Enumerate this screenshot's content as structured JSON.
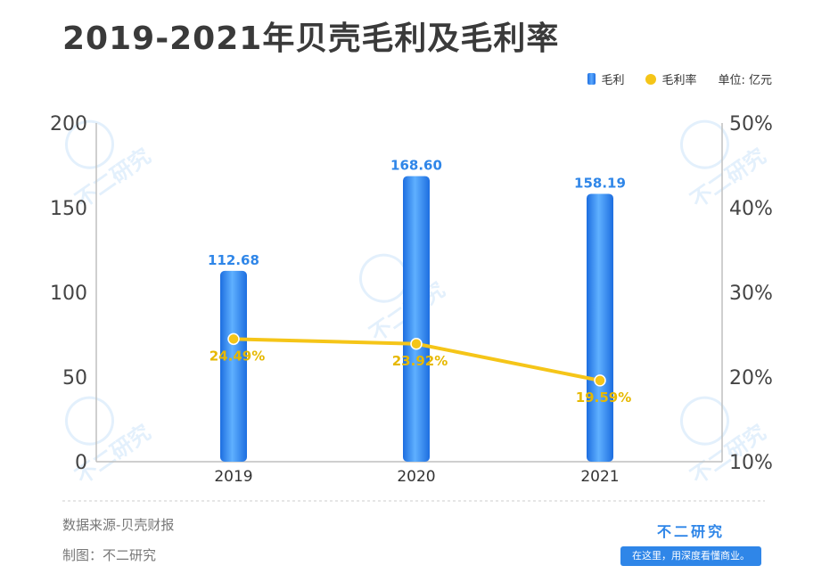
{
  "title": "2019-2021年贝壳毛利及毛利率",
  "legend": {
    "bar_label": "毛利",
    "line_label": "毛利率",
    "unit": "单位: 亿元"
  },
  "footer": {
    "source": "数据来源-贝壳财报",
    "credit": "制图：不二研究"
  },
  "brand": {
    "name": "不二研究",
    "tagline": "在这里，用深度看懂商业。"
  },
  "watermark": "不二研究",
  "colors": {
    "bar": "#2f86e8",
    "line": "#f5c518",
    "bar_label": "#2f86e8",
    "line_label": "#e6b800"
  },
  "chart_data": {
    "type": "bar",
    "categories": [
      "2019",
      "2020",
      "2021"
    ],
    "series": [
      {
        "name": "毛利",
        "type": "bar",
        "axis": "left",
        "values": [
          112.68,
          168.6,
          158.19
        ],
        "labels": [
          "112.68",
          "168.60",
          "158.19"
        ]
      },
      {
        "name": "毛利率",
        "type": "line",
        "axis": "right",
        "values": [
          24.49,
          23.92,
          19.59
        ],
        "labels": [
          "24.49%",
          "23.92%",
          "19.59%"
        ]
      }
    ],
    "y_left": {
      "min": 0,
      "max": 200,
      "ticks": [
        "0",
        "50",
        "100",
        "150",
        "200"
      ]
    },
    "y_right": {
      "min": 10,
      "max": 50,
      "ticks": [
        "10%",
        "20%",
        "30%",
        "40%",
        "50%"
      ]
    },
    "grid": false
  }
}
